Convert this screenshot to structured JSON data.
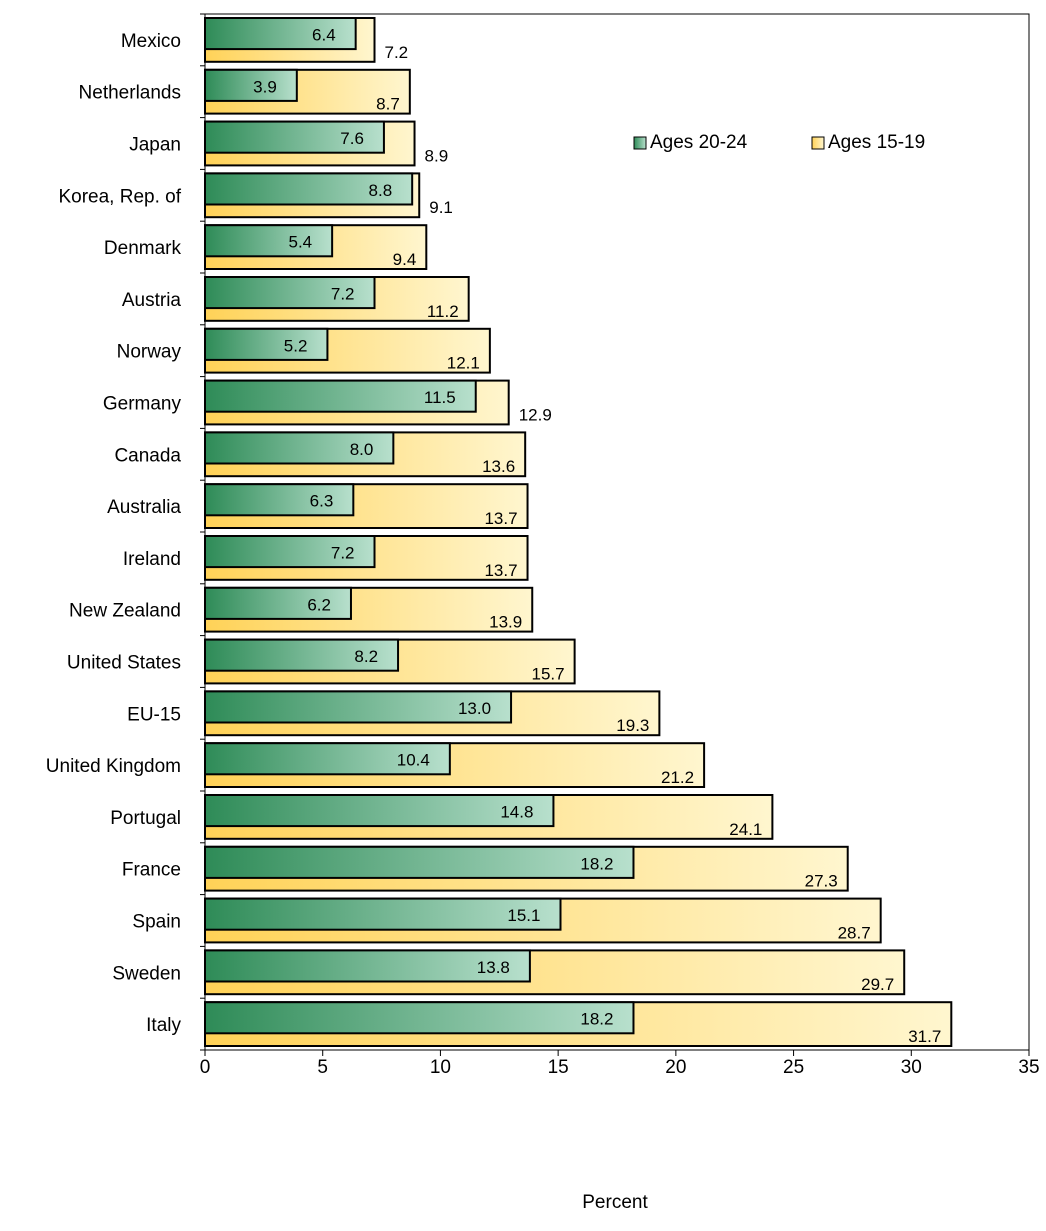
{
  "chart_data": {
    "type": "bar",
    "orientation": "horizontal",
    "categories": [
      "Mexico",
      "Netherlands",
      "Japan",
      "Korea, Rep. of",
      "Denmark",
      "Austria",
      "Norway",
      "Germany",
      "Canada",
      "Australia",
      "Ireland",
      "New Zealand",
      "United States",
      "EU-15",
      "United Kingdom",
      "Portugal",
      "France",
      "Spain",
      "Sweden",
      "Italy"
    ],
    "series": [
      {
        "name": "Ages 20-24",
        "color": "#2e8b57",
        "values": [
          6.4,
          3.9,
          7.6,
          8.8,
          5.4,
          7.2,
          5.2,
          11.5,
          8.0,
          6.3,
          7.2,
          6.2,
          8.2,
          13.0,
          10.4,
          14.8,
          18.2,
          15.1,
          13.8,
          18.2
        ]
      },
      {
        "name": "Ages 15-19",
        "color": "#ffd24a",
        "values": [
          7.2,
          8.7,
          8.9,
          9.1,
          9.4,
          11.2,
          12.1,
          12.9,
          13.6,
          13.7,
          13.7,
          13.9,
          15.7,
          19.3,
          21.2,
          24.1,
          27.3,
          28.7,
          29.7,
          31.7
        ]
      }
    ],
    "value_labels_20_24": [
      "6.4",
      "3.9",
      "7.6",
      "8.8",
      "5.4",
      "7.2",
      "5.2",
      "11.5",
      "8.0",
      "6.3",
      "7.2",
      "6.2",
      "8.2",
      "13.0",
      "10.4",
      "14.8",
      "18.2",
      "15.1",
      "13.8",
      "18.2"
    ],
    "value_labels_15_19": [
      "7.2",
      "8.7",
      "8.9",
      "9.1",
      "9.4",
      "11.2",
      "12.1",
      "12.9",
      "13.6",
      "13.7",
      "13.7",
      "13.9",
      "15.7",
      "19.3",
      "21.2",
      "24.1",
      "27.3",
      "28.7",
      "29.7",
      "31.7"
    ],
    "xlabel": "Percent",
    "xlim": [
      0,
      35
    ],
    "xticks": [
      "0",
      "5",
      "10",
      "15",
      "20",
      "25",
      "30",
      "35"
    ],
    "legend_position": "top-right",
    "grid": false
  }
}
